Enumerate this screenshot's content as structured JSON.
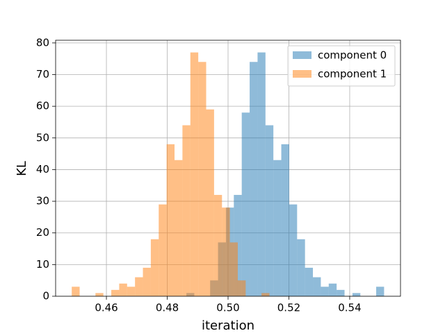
{
  "chart_data": {
    "type": "histogram",
    "xlabel": "iteration",
    "ylabel": "KL",
    "series": [
      {
        "name": "component 0",
        "color": "#1f77b4",
        "bins": [
          0.4863,
          0.4889,
          0.4915,
          0.4941,
          0.4967,
          0.4993,
          0.5019,
          0.5045,
          0.5071,
          0.5097,
          0.5123,
          0.5149,
          0.5175,
          0.5201,
          0.5227,
          0.5253,
          0.5279,
          0.5305,
          0.5331,
          0.5357,
          0.5383,
          0.5409,
          0.5435,
          0.5461,
          0.5487,
          0.5513
        ],
        "values": [
          1,
          0,
          0,
          5,
          17,
          28,
          32,
          58,
          74,
          77,
          54,
          43,
          48,
          29,
          18,
          9,
          6,
          3,
          4,
          2,
          0,
          1,
          0,
          0,
          3
        ]
      },
      {
        "name": "component 1",
        "color": "#ff7f0e",
        "bins": [
          0.4486,
          0.4512,
          0.4538,
          0.4564,
          0.459,
          0.4616,
          0.4642,
          0.4668,
          0.4694,
          0.472,
          0.4746,
          0.4772,
          0.4798,
          0.4824,
          0.485,
          0.4876,
          0.4902,
          0.4928,
          0.4954,
          0.498,
          0.5006,
          0.5032,
          0.5058,
          0.5084,
          0.511,
          0.5136
        ],
        "values": [
          3,
          0,
          0,
          1,
          0,
          2,
          4,
          3,
          6,
          9,
          18,
          29,
          48,
          43,
          54,
          77,
          74,
          59,
          32,
          28,
          17,
          5,
          0,
          0,
          1
        ]
      }
    ],
    "alpha": 0.5,
    "xlim": [
      0.4433,
      0.5567
    ],
    "xticks": [
      0.46,
      0.48,
      {
        "value": 0.5,
        "label": "0.50"
      },
      0.52,
      0.54
    ],
    "ylim": [
      0,
      80.85
    ],
    "yticks": [
      0,
      10,
      20,
      30,
      40,
      50,
      60,
      70,
      80
    ],
    "grid": true,
    "legend": "upper right"
  }
}
